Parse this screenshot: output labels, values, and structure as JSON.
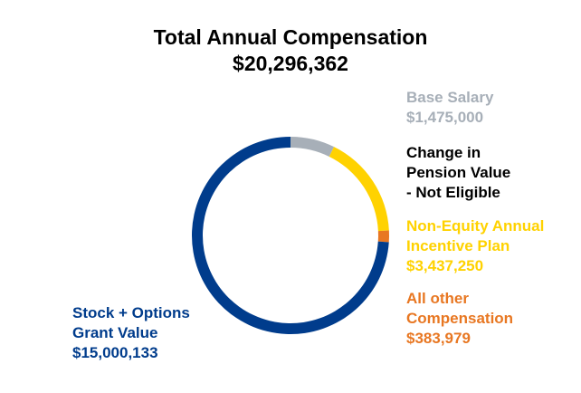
{
  "chart_data": {
    "type": "pie",
    "title": "Total Annual Compensation",
    "subtitle": "$20,296,362",
    "slices": [
      {
        "name": "Base Salary",
        "value": 1475000,
        "label_lines": [
          "Base Salary",
          "$1,475,000"
        ],
        "color": "#A7AFB8"
      },
      {
        "name": "Change in Pension Value - Not Eligible",
        "value": 0,
        "label_lines": [
          "Change in",
          "Pension Value",
          "- Not Eligible"
        ],
        "color": "#000000"
      },
      {
        "name": "Non-Equity Annual Incentive Plan",
        "value": 3437250,
        "label_lines": [
          "Non-Equity Annual",
          "Incentive Plan",
          "$3,437,250"
        ],
        "color": "#FFD200"
      },
      {
        "name": "All other Compensation",
        "value": 383979,
        "label_lines": [
          "All other",
          "Compensation",
          "$383,979"
        ],
        "color": "#E87722"
      },
      {
        "name": "Stock + Options Grant Value",
        "value": 15000133,
        "label_lines": [
          "Stock + Options",
          "Grant Value",
          "$15,000,133"
        ],
        "color": "#003C8C"
      }
    ],
    "label_colors": {
      "base": "#A7AFB8",
      "pension": "#000000",
      "incentive": "#FFD200",
      "other": "#E87722",
      "stock": "#003C8C"
    }
  }
}
